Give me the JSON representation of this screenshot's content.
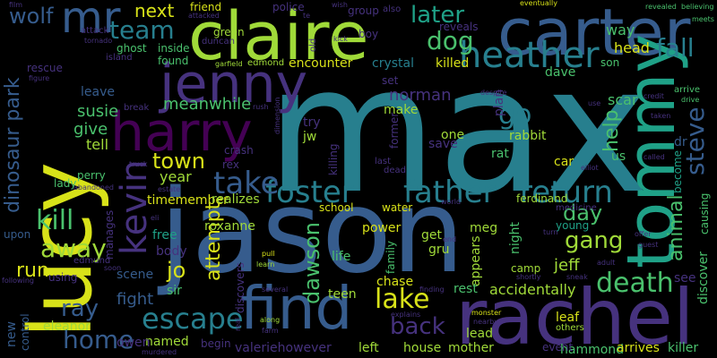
{
  "background": "#000000",
  "palette": {
    "yellow": "#d8e219",
    "lime": "#a0da39",
    "green": "#4ac16d",
    "teal": "#1fa187",
    "cyan": "#277f8e",
    "blue": "#365c8d",
    "indigo": "#46327e",
    "purple": "#440154"
  },
  "words": {
    "max": "max",
    "jason": "jason",
    "lucy": "lucy",
    "rachel": "rachel",
    "carter": "carter",
    "claire": "claire",
    "tommy": "tommy",
    "jenny": "jenny",
    "harry": "harry",
    "find": "find",
    "foster": "foster",
    "father": "father",
    "return": "return",
    "kevin": "kevin",
    "heather": "heather",
    "mr": "mr",
    "take": "take",
    "escape": "escape",
    "home": "home",
    "lake": "lake",
    "back": "back",
    "death": "death",
    "steve": "steve",
    "dinosaur_park": "dinosaur park",
    "kill": "kill",
    "away": "away",
    "go": "go",
    "dog": "dog",
    "team": "team",
    "fall": "fall",
    "gang": "gang",
    "town": "town",
    "day": "day",
    "help": "help",
    "animal": "animal",
    "later": "later",
    "attempt": "attempt",
    "jo": "jo",
    "dawson": "dawson",
    "ray": "ray",
    "wolf": "wolf",
    "next": "next",
    "run": "run",
    "norman": "norman",
    "jeff": "jeff",
    "accidentally": "accidentally",
    "meanwhile": "meanwhile",
    "susie": "susie",
    "give": "give",
    "tell": "tell",
    "leave": "leave",
    "fight": "fight",
    "scene": "scene",
    "year": "year",
    "timemember": "timemember",
    "realizes": "realizes",
    "encounter": "encounter",
    "killed": "killed",
    "crystal": "crystal",
    "head": "head",
    "dave": "dave",
    "scar": "scar",
    "way": "way",
    "son": "son",
    "plan": "plan",
    "rabbit": "rabbit",
    "rat": "rat",
    "car": "car",
    "us": "us",
    "dr": "dr",
    "become": "become",
    "causing": "causing",
    "discover": "discover",
    "see": "see",
    "killer": "killer",
    "hammond": "hammond",
    "arrives": "arrives",
    "event": "event",
    "leaf": "leaf",
    "others": "others",
    "house": "house",
    "mother": "mother",
    "lead": "lead",
    "left": "left",
    "valeriehowever": "valeriehowever",
    "begin": "begin",
    "named": "named",
    "owen": "owen",
    "eleanor": "eleanor",
    "new": "new",
    "control": "control",
    "rest": "rest",
    "chase": "chase",
    "teen": "teen",
    "life": "life",
    "roxanne": "roxanne",
    "free": "free",
    "body": "body",
    "sir": "sir",
    "power": "power",
    "get": "get",
    "gru": "gru",
    "appears": "appears",
    "family": "family",
    "camp": "camp",
    "night": "night",
    "young": "young",
    "meg": "meg",
    "ferdinand": "ferdinand",
    "medicine": "medicine",
    "water": "water",
    "school": "school",
    "one": "one",
    "save": "save",
    "try": "try",
    "jw": "jw",
    "make": "make",
    "set": "set",
    "former": "former",
    "killing": "killing",
    "dead": "dead",
    "last": "last",
    "crash": "crash",
    "rex": "rex",
    "perry": "perry",
    "lady": "lady",
    "upon": "upon",
    "edmund": "edmund",
    "using": "using",
    "manages": "manages",
    "discovers": "discovers",
    "green": "green",
    "duncan": "duncan",
    "ghost": "ghost",
    "inside": "inside",
    "found": "found",
    "attack": "attack",
    "island": "island",
    "rescue": "rescue",
    "figure": "figure",
    "tornado": "tornado",
    "garfield": "garfield",
    "edmond": "edmond",
    "police": "police",
    "friend": "friend",
    "boy": "boy",
    "group": "group",
    "also": "also",
    "reveals": "reveals",
    "old": "old",
    "kick": "kick",
    "eventually": "eventually",
    "revealed": "revealed",
    "believing": "believing",
    "meets": "meets",
    "arrive": "arrive",
    "drive": "drive",
    "film": "film",
    "attacked": "attacked",
    "wish": "wish",
    "break": "break",
    "rush": "rush",
    "despite": "despite",
    "use": "use",
    "credit": "credit",
    "taken": "taken",
    "called": "called",
    "elliot": "elliot",
    "truck": "truck",
    "abandoned": "abandoned",
    "estate": "estate",
    "eli": "eli",
    "world": "world",
    "end": "end",
    "turn": "turn",
    "offer": "offer",
    "guest": "guest",
    "adult": "adult",
    "sneak": "sneak",
    "shortly": "shortly",
    "finding": "finding",
    "explains": "explains",
    "monster": "monster",
    "nearby": "nearby",
    "along": "along",
    "farm": "farm",
    "several": "several",
    "pull": "pull",
    "learn": "learn",
    "soon": "soon",
    "following": "following",
    "murdered": "murdered",
    "real": "real",
    "te": "te",
    "dimension": "dimension"
  }
}
